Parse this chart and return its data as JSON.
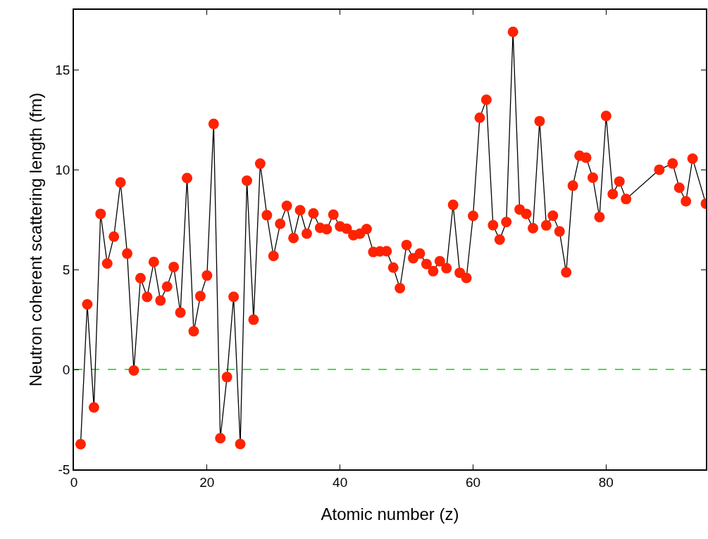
{
  "chart_data": {
    "type": "line",
    "xlabel": "Atomic number (z)",
    "ylabel": "Neutron coherent scattering length (fm)",
    "x": [
      1,
      2,
      3,
      4,
      5,
      6,
      7,
      8,
      9,
      10,
      11,
      12,
      13,
      14,
      15,
      16,
      17,
      18,
      19,
      20,
      21,
      22,
      23,
      24,
      25,
      26,
      27,
      28,
      29,
      30,
      31,
      32,
      33,
      34,
      35,
      36,
      37,
      38,
      39,
      40,
      41,
      42,
      43,
      44,
      45,
      46,
      47,
      48,
      49,
      50,
      51,
      52,
      53,
      54,
      55,
      56,
      57,
      58,
      59,
      60,
      61,
      62,
      63,
      64,
      65,
      66,
      67,
      68,
      69,
      70,
      71,
      72,
      73,
      74,
      75,
      76,
      77,
      78,
      79,
      80,
      81,
      82,
      83,
      88,
      90,
      91,
      92,
      93,
      95
    ],
    "series": [
      {
        "color": "#ff2200",
        "values": [
          -3.74,
          3.26,
          -1.9,
          7.79,
          5.3,
          6.65,
          9.36,
          5.8,
          -0.05,
          4.57,
          3.63,
          5.38,
          3.45,
          4.15,
          5.13,
          2.85,
          9.58,
          1.91,
          3.67,
          4.7,
          12.29,
          -3.44,
          -0.38,
          3.64,
          -3.73,
          9.45,
          2.49,
          10.3,
          7.72,
          5.68,
          7.29,
          8.19,
          6.58,
          7.97,
          6.8,
          7.81,
          7.09,
          7.02,
          7.75,
          7.16,
          7.05,
          6.72,
          6.8,
          7.03,
          5.88,
          5.91,
          5.92,
          5.1,
          4.07,
          6.23,
          5.57,
          5.8,
          5.28,
          4.92,
          5.42,
          5.07,
          8.24,
          4.84,
          4.58,
          7.69,
          12.6,
          13.5,
          7.22,
          6.5,
          7.38,
          16.9,
          8.01,
          7.79,
          7.07,
          12.43,
          7.21,
          7.7,
          6.91,
          4.86,
          9.2,
          10.7,
          10.6,
          9.6,
          7.63,
          12.69,
          8.78,
          9.41,
          8.53,
          10.0,
          10.31,
          9.1,
          8.42,
          10.55,
          8.3
        ]
      }
    ],
    "marker": "circle",
    "line_style": "solid",
    "xlim": [
      0,
      95
    ],
    "xticks": [
      0,
      20,
      40,
      60,
      80
    ],
    "ylim": [
      -5,
      18
    ],
    "yticks": [
      -5,
      0,
      5,
      10,
      15
    ],
    "ref_lines": [
      {
        "axis": "y",
        "value": 0,
        "color": "#00dd00",
        "line_style": "dashed"
      }
    ]
  }
}
